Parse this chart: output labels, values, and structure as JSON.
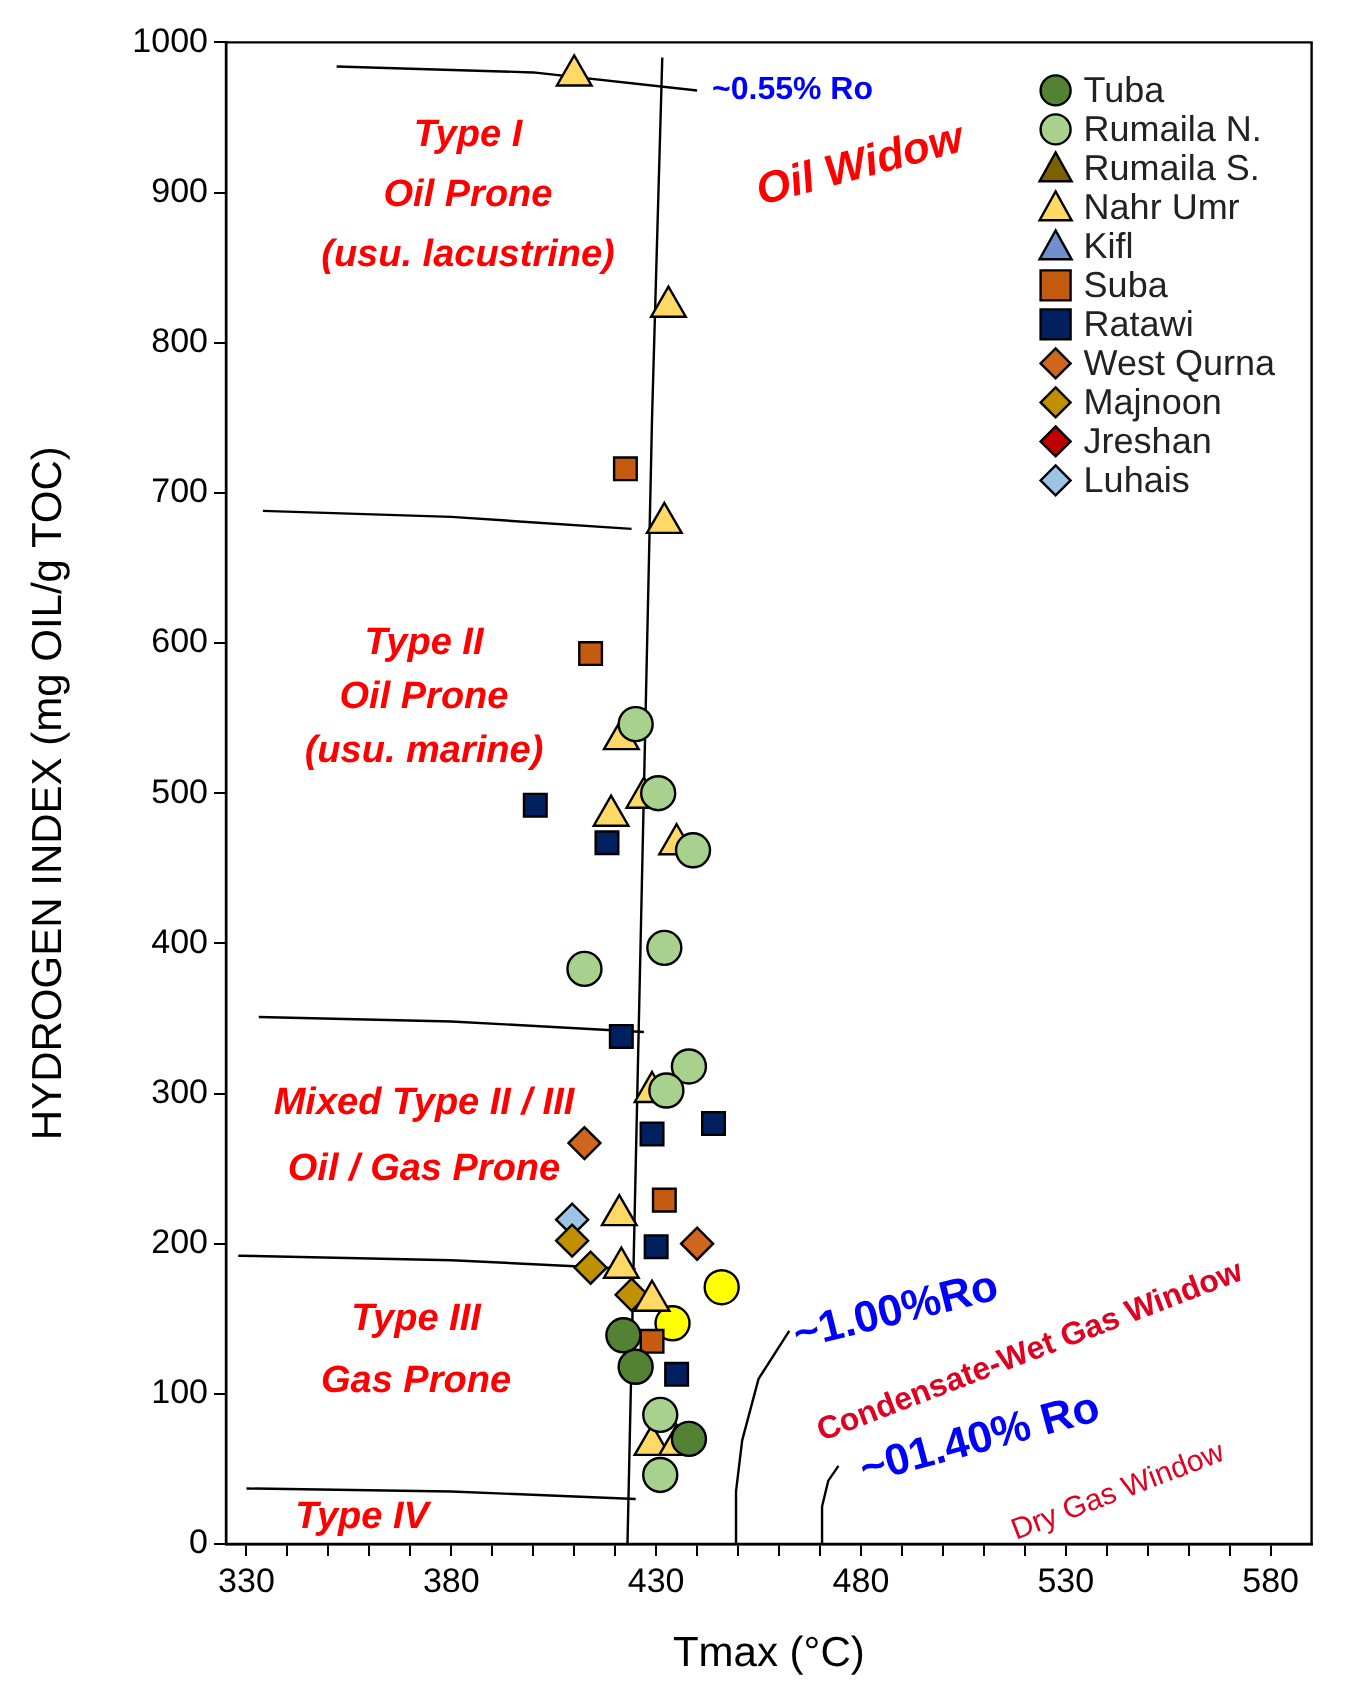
{
  "chart_data": {
    "type": "scatter",
    "xlabel": "Tmax (°C)",
    "ylabel": "HYDROGEN INDEX (mg OIL/g TOC)",
    "xlim": [
      325,
      590
    ],
    "ylim": [
      0,
      1000
    ],
    "xticks": [
      330,
      {
        "value": 340,
        "label": null
      },
      {
        "value": 350,
        "label": null
      },
      {
        "value": 360,
        "label": null
      },
      {
        "value": 370,
        "label": null
      },
      380,
      {
        "value": 390,
        "label": null
      },
      {
        "value": 400,
        "label": null
      },
      {
        "value": 410,
        "label": null
      },
      {
        "value": 420,
        "label": null
      },
      430,
      {
        "value": 440,
        "label": null
      },
      {
        "value": 450,
        "label": null
      },
      {
        "value": 460,
        "label": null
      },
      {
        "value": 470,
        "label": null
      },
      480,
      {
        "value": 490,
        "label": null
      },
      {
        "value": 500,
        "label": null
      },
      {
        "value": 510,
        "label": null
      },
      {
        "value": 520,
        "label": null
      },
      530,
      {
        "value": 540,
        "label": null
      },
      {
        "value": 550,
        "label": null
      },
      {
        "value": 560,
        "label": null
      },
      {
        "value": 570,
        "label": null
      },
      580
    ],
    "yticks": [
      0,
      100,
      200,
      300,
      400,
      500,
      600,
      700,
      800,
      900,
      1000
    ],
    "grid": false,
    "legend": "top right",
    "series": [
      {
        "name": "Tuba",
        "marker": "circle",
        "color": "#548235",
        "x": [
          422,
          425,
          438
        ],
        "values": [
          139,
          118,
          70
        ]
      },
      {
        "name": "Rumaila N.",
        "marker": "circle",
        "color": "#a9d18e",
        "x": [
          425,
          430.5,
          439,
          432,
          412.5,
          438,
          432.5,
          431,
          431
        ],
        "values": [
          546,
          500,
          462,
          397,
          383,
          318,
          302,
          86,
          46
        ]
      },
      {
        "name": "Rumaila S.",
        "marker": "triangle",
        "color": "#7f6000"
      },
      {
        "name": "Nahr Umr",
        "marker": "triangle",
        "color": "#ffd966",
        "x": [
          410,
          433,
          432,
          421.5,
          427,
          419,
          435,
          429,
          421,
          421.5,
          429,
          429,
          435
        ],
        "values": [
          978,
          824,
          680,
          536,
          497,
          485,
          466,
          301,
          219,
          184,
          162,
          66,
          66
        ]
      },
      {
        "name": "Kifl",
        "marker": "triangle",
        "color": "#6f8fd0"
      },
      {
        "name": "Suba",
        "marker": "square",
        "color": "#c55a11",
        "x": [
          422.5,
          414,
          432,
          429
        ],
        "values": [
          716,
          593,
          229,
          135
        ]
      },
      {
        "name": "Ratawi",
        "marker": "square",
        "color": "#002060",
        "x": [
          400.5,
          418,
          421.5,
          429,
          444,
          430,
          435
        ],
        "values": [
          492,
          467,
          338,
          273,
          280,
          198,
          113
        ]
      },
      {
        "name": "West Qurna",
        "marker": "diamond",
        "color": "#d0661e",
        "x": [
          412.5,
          440
        ],
        "values": [
          267,
          200
        ]
      },
      {
        "name": "Majnoon",
        "marker": "diamond",
        "color": "#bf9000",
        "x": [
          409.5,
          414,
          424
        ],
        "values": [
          202,
          184,
          166
        ]
      },
      {
        "name": "Jreshan",
        "marker": "diamond",
        "color": "#c00000"
      },
      {
        "name": "Luhais",
        "marker": "diamond",
        "color": "#9dc3e6",
        "x": [
          409.5
        ],
        "values": [
          216
        ]
      },
      {
        "marker": "circle",
        "color": "#ffff00",
        "x": [
          446,
          434
        ],
        "values": [
          171,
          147
        ]
      },
      {
        "type": "line",
        "marker": "none",
        "line_style": "solid",
        "color": "#000000",
        "x": [
          423,
          425,
          427,
          429,
          431.5
        ],
        "values": [
          0,
          250,
          500,
          750,
          990
        ]
      },
      {
        "type": "line",
        "marker": "none",
        "line_style": "solid",
        "color": "#000000",
        "x": [
          352,
          400,
          440
        ],
        "values": [
          984,
          980,
          968
        ]
      },
      {
        "type": "line",
        "marker": "none",
        "line_style": "solid",
        "color": "#000000",
        "x": [
          334,
          380,
          424
        ],
        "values": [
          688,
          684,
          676
        ]
      },
      {
        "type": "line",
        "marker": "none",
        "line_style": "solid",
        "color": "#000000",
        "x": [
          333,
          380,
          427
        ],
        "values": [
          351,
          348,
          341
        ]
      },
      {
        "type": "line",
        "marker": "none",
        "line_style": "solid",
        "color": "#000000",
        "x": [
          328,
          380,
          425
        ],
        "values": [
          192,
          189,
          183
        ]
      },
      {
        "type": "line",
        "marker": "none",
        "line_style": "solid",
        "color": "#000000",
        "x": [
          330,
          380,
          425
        ],
        "values": [
          37,
          35,
          30
        ]
      },
      {
        "type": "line",
        "marker": "none",
        "line_style": "solid",
        "color": "#000000",
        "x": [
          449.5,
          449.5,
          451,
          455,
          462.5
        ],
        "values": [
          0,
          35,
          69,
          110,
          142
        ]
      },
      {
        "type": "line",
        "marker": "none",
        "line_style": "solid",
        "color": "#000000",
        "x": [
          470.5,
          470.5,
          472,
          474.5
        ],
        "values": [
          0,
          25,
          42,
          52
        ]
      }
    ],
    "annotations": [
      "~0.55% Ro",
      "Oil Widow",
      "Type I\nOil Prone\n(usu. lacustrine)",
      "Type II\nOil Prone\n(usu. marine)",
      "Mixed Type II / III\nOil / Gas Prone",
      "Type III\nGas Prone",
      "Type IV",
      "~1.00%Ro",
      "Condensate-Wet Gas Window",
      "~01.40% Ro",
      "Dry Gas Window"
    ]
  }
}
